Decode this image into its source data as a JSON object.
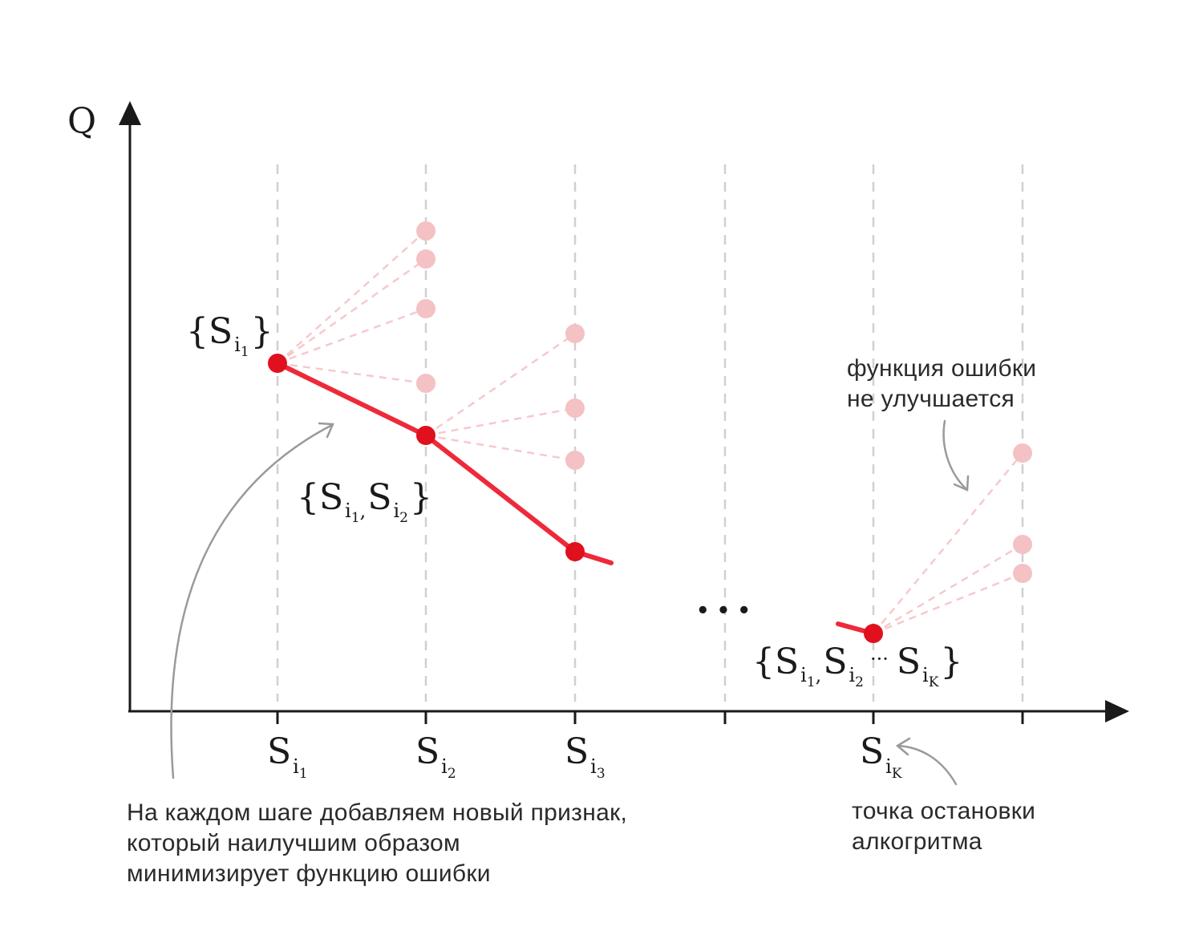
{
  "axis": {
    "y_label": "Q"
  },
  "ticks": [
    {
      "base": "S",
      "sub": "i",
      "subsub": "1"
    },
    {
      "base": "S",
      "sub": "i",
      "subsub": "2"
    },
    {
      "base": "S",
      "sub": "i",
      "subsub": "3"
    },
    {
      "base": "S",
      "sub": "i",
      "subsub": "K"
    }
  ],
  "ellipsis": "• • •",
  "sets": {
    "first": {
      "open": "{",
      "base": "S",
      "sub": "i",
      "subsub": "1",
      "close": "}"
    },
    "second": {
      "open": "{",
      "b1": "S",
      "s1": "i",
      "ss1": "1",
      "sep": ",",
      "b2": "S",
      "s2": "i",
      "ss2": "2",
      "close": "}"
    },
    "last": {
      "open": "{",
      "b1": "S",
      "s1": "i",
      "ss1": "1",
      "sep": ",",
      "b2": "S",
      "s2": "i",
      "ss2": "2",
      "dots": "···",
      "b3": "S",
      "s3": "i",
      "ss3": "K",
      "close": "}"
    }
  },
  "notes": {
    "left": [
      "На каждом шаге добавляем новый признак,",
      "который наилучшим образом",
      "минимизирует функцию ошибки"
    ],
    "right_top": [
      "функция ошибки",
      "не улучшается"
    ],
    "right_bottom": [
      "точка остановки",
      "алкогритма"
    ]
  },
  "colors": {
    "axis": "#1a1a1a",
    "guide": "#d0d0d0",
    "path": "#ee2a3a",
    "point": "#e0101e",
    "candidate": "#f4c1c4",
    "candidate_line": "#f6c9cc",
    "arrow": "#9a9a9a"
  }
}
